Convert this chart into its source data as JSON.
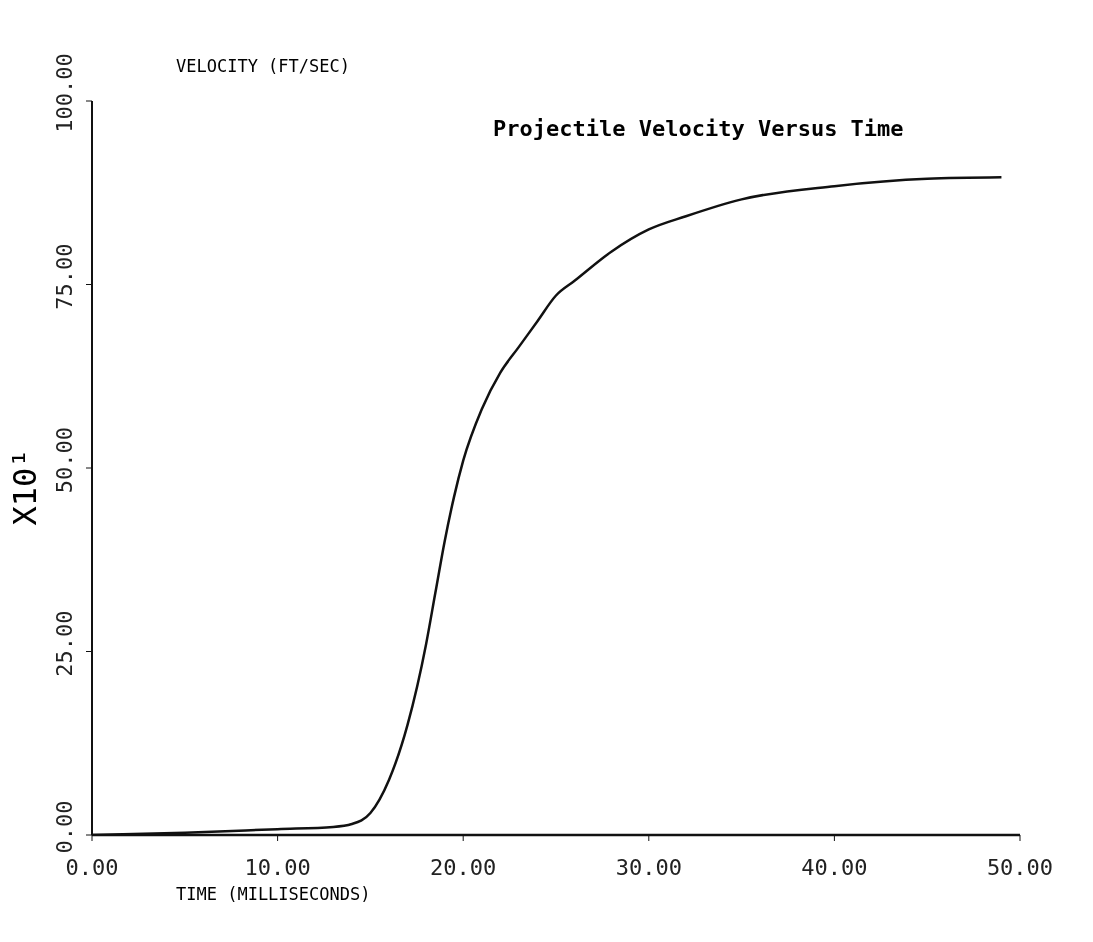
{
  "chart_data": {
    "type": "line",
    "title": "Projectile Velocity Versus Time",
    "xlabel": "TIME (MILLISECONDS)",
    "ylabel": "VELOCITY (FT/SEC)",
    "annotations": [
      "X10¹"
    ],
    "x": [
      0,
      5,
      10,
      13,
      14,
      15,
      16,
      17,
      18,
      18.5,
      19,
      19.5,
      20,
      21,
      22,
      23,
      24,
      25,
      26,
      28,
      30,
      32,
      35,
      40,
      45,
      49
    ],
    "series": [
      {
        "color": "#111111",
        "values": [
          0,
          0.3,
          0.8,
          1.1,
          1.5,
          3,
          7.5,
          15,
          26,
          33,
          40,
          46,
          51,
          58,
          63,
          66.5,
          70,
          73.5,
          75.5,
          79.5,
          82.5,
          84.3,
          86.6,
          88.4,
          89.4,
          89.6
        ]
      }
    ],
    "xlim": [
      0,
      50
    ],
    "xticks": [
      {
        "value": 0,
        "label": "0.00"
      },
      {
        "value": 10,
        "label": "10.00"
      },
      {
        "value": 20,
        "label": "20.00"
      },
      {
        "value": 30,
        "label": "30.00"
      },
      {
        "value": 40,
        "label": "40.00"
      },
      {
        "value": 50,
        "label": "50.00"
      }
    ],
    "ylim": [
      0,
      100
    ],
    "yticks": [
      {
        "value": 0,
        "label": "0.00"
      },
      {
        "value": 25,
        "label": "25.00"
      },
      {
        "value": 50,
        "label": "50.00"
      },
      {
        "value": 75,
        "label": "75.00"
      },
      {
        "value": 100,
        "label": "100.00"
      }
    ],
    "marker": "none",
    "line_style": "solid"
  }
}
